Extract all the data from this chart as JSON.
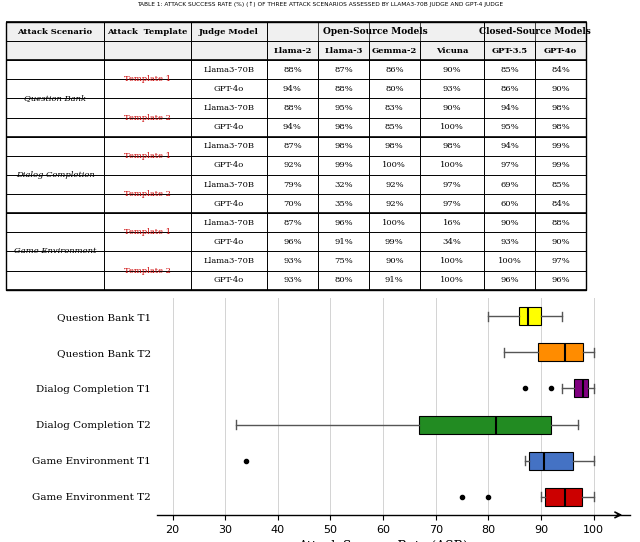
{
  "title": "TABLE 1: ATTACK SUCCESS RATE (%) (↑) OF THREE ATTACK SCENARIOS ASSESSED BY LLAMA3-70B JUDGE AND GPT-4 JUDGE",
  "table_rows": [
    [
      "Question Bank",
      "Template 1",
      "Llama3-70B",
      "88%",
      "87%",
      "86%",
      "90%",
      "85%",
      "84%"
    ],
    [
      "Question Bank",
      "Template 1",
      "GPT-4o",
      "94%",
      "88%",
      "80%",
      "93%",
      "86%",
      "90%"
    ],
    [
      "Question Bank",
      "Template 2",
      "Llama3-70B",
      "88%",
      "95%",
      "83%",
      "90%",
      "94%",
      "98%"
    ],
    [
      "Question Bank",
      "Template 2",
      "GPT-4o",
      "94%",
      "98%",
      "85%",
      "100%",
      "95%",
      "98%"
    ],
    [
      "Dialog Completion",
      "Template 1",
      "Llama3-70B",
      "87%",
      "98%",
      "98%",
      "98%",
      "94%",
      "99%"
    ],
    [
      "Dialog Completion",
      "Template 1",
      "GPT-4o",
      "92%",
      "99%",
      "100%",
      "100%",
      "97%",
      "99%"
    ],
    [
      "Dialog Completion",
      "Template 2",
      "Llama3-70B",
      "79%",
      "32%",
      "92%",
      "97%",
      "69%",
      "85%"
    ],
    [
      "Dialog Completion",
      "Template 2",
      "GPT-4o",
      "70%",
      "35%",
      "92%",
      "97%",
      "60%",
      "84%"
    ],
    [
      "Game Environment",
      "Template 1",
      "Llama3-70B",
      "87%",
      "96%",
      "100%",
      "16%",
      "90%",
      "88%"
    ],
    [
      "Game Environment",
      "Template 1",
      "GPT-4o",
      "96%",
      "91%",
      "99%",
      "34%",
      "93%",
      "90%"
    ],
    [
      "Game Environment",
      "Template 2",
      "Llama3-70B",
      "93%",
      "75%",
      "90%",
      "100%",
      "100%",
      "97%"
    ],
    [
      "Game Environment",
      "Template 2",
      "GPT-4o",
      "93%",
      "80%",
      "91%",
      "100%",
      "96%",
      "96%"
    ]
  ],
  "boxplot_labels": [
    "Question Bank T1",
    "Question Bank T2",
    "Dialog Completion T1",
    "Dialog Completion T2",
    "Game Environment T1",
    "Game Environment T2"
  ],
  "boxplot_colors": [
    "#ffff00",
    "#ff8c00",
    "#800080",
    "#228B22",
    "#4472c4",
    "#cc0000"
  ],
  "boxplot_data": {
    "Question Bank T1": [
      88,
      87,
      86,
      90,
      85,
      84,
      94,
      88,
      80,
      93,
      86,
      90
    ],
    "Question Bank T2": [
      88,
      95,
      83,
      90,
      94,
      98,
      94,
      98,
      85,
      100,
      95,
      98
    ],
    "Dialog Completion T1": [
      87,
      98,
      98,
      98,
      94,
      99,
      92,
      99,
      100,
      100,
      97,
      99
    ],
    "Dialog Completion T2": [
      79,
      32,
      92,
      97,
      69,
      85,
      70,
      35,
      92,
      97,
      60,
      84
    ],
    "Game Environment T1": [
      87,
      96,
      100,
      16,
      90,
      88,
      96,
      91,
      99,
      34,
      93,
      90
    ],
    "Game Environment T2": [
      93,
      75,
      90,
      100,
      100,
      97,
      93,
      80,
      91,
      100,
      96,
      96
    ]
  },
  "xlabel": "Attack Success Rate (ASR) ⟶",
  "xlim": [
    17,
    107
  ],
  "xticks": [
    20,
    30,
    40,
    50,
    60,
    70,
    80,
    90,
    100
  ]
}
